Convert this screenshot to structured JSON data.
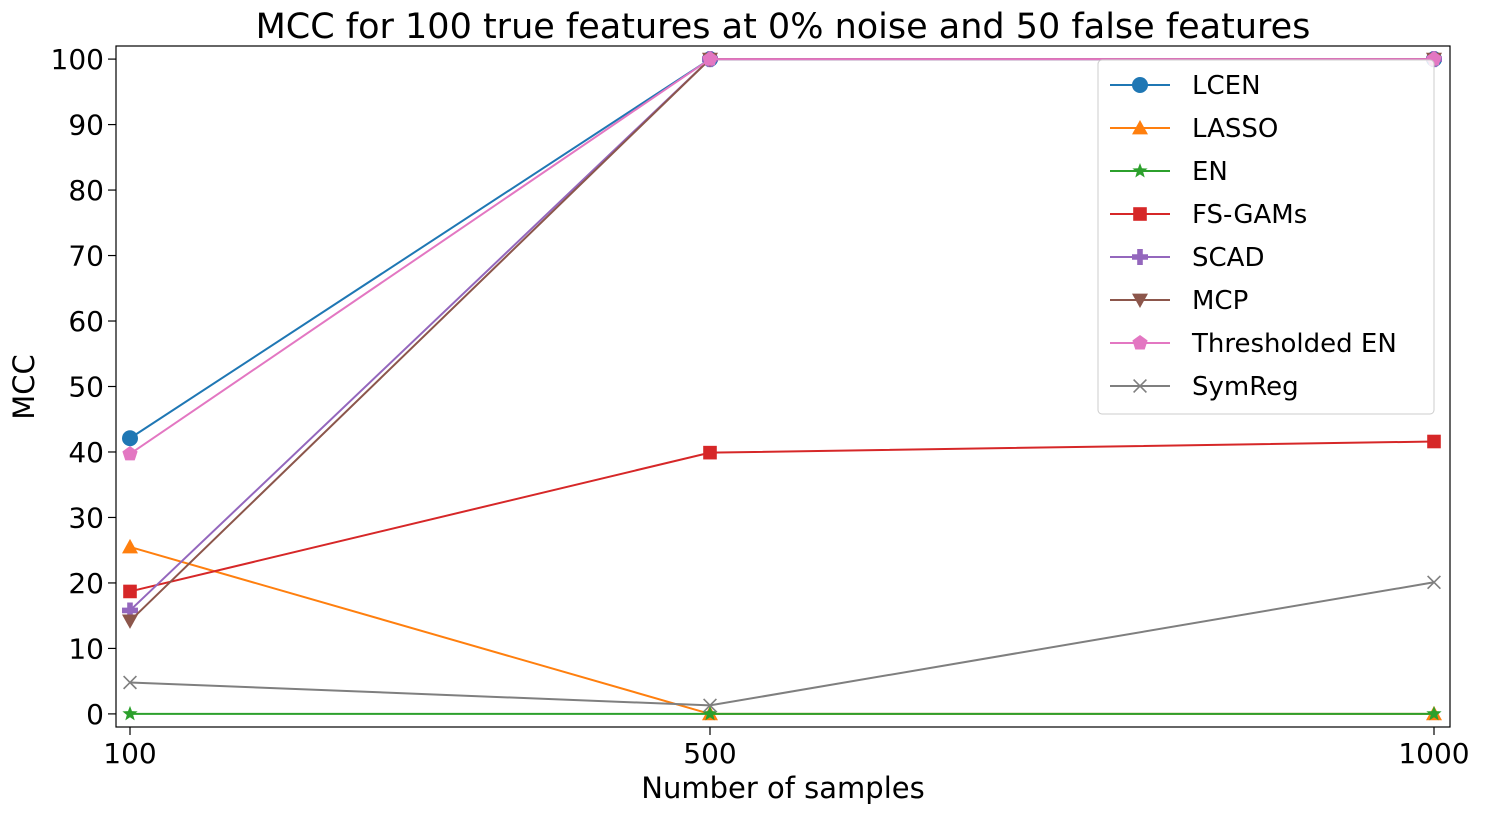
{
  "chart_data": {
    "type": "line",
    "title": "MCC for 100 true features at 0% noise and 50 false features",
    "xlabel": "Number of samples",
    "ylabel": "MCC",
    "x": [
      100,
      500,
      1000
    ],
    "x_tick_labels": [
      "100",
      "500",
      "1000"
    ],
    "y_ticks": [
      0,
      10,
      20,
      30,
      40,
      50,
      60,
      70,
      80,
      90,
      100
    ],
    "xlim": [
      80,
      1012
    ],
    "ylim": [
      -2,
      102
    ],
    "grid": false,
    "legend_position": "top-right",
    "series": [
      {
        "name": "LCEN",
        "color": "#1f77b4",
        "marker": "circle",
        "values": [
          42.1,
          100,
          100
        ]
      },
      {
        "name": "LASSO",
        "color": "#ff7f0e",
        "marker": "triangle-up",
        "values": [
          25.5,
          0,
          0
        ]
      },
      {
        "name": "EN",
        "color": "#2ca02c",
        "marker": "star",
        "values": [
          0,
          0,
          0
        ]
      },
      {
        "name": "FS-GAMs",
        "color": "#d62728",
        "marker": "square",
        "values": [
          18.7,
          39.9,
          41.6
        ]
      },
      {
        "name": "SCAD",
        "color": "#9467bd",
        "marker": "plus",
        "values": [
          15.8,
          100,
          100
        ]
      },
      {
        "name": "MCP",
        "color": "#8c564b",
        "marker": "triangle-down",
        "values": [
          14.2,
          100,
          100
        ]
      },
      {
        "name": "Thresholded EN",
        "color": "#e377c2",
        "marker": "pentagon",
        "values": [
          39.7,
          100,
          100
        ]
      },
      {
        "name": "SymReg",
        "color": "#7f7f7f",
        "marker": "x",
        "values": [
          4.8,
          1.3,
          20.1
        ]
      }
    ]
  }
}
